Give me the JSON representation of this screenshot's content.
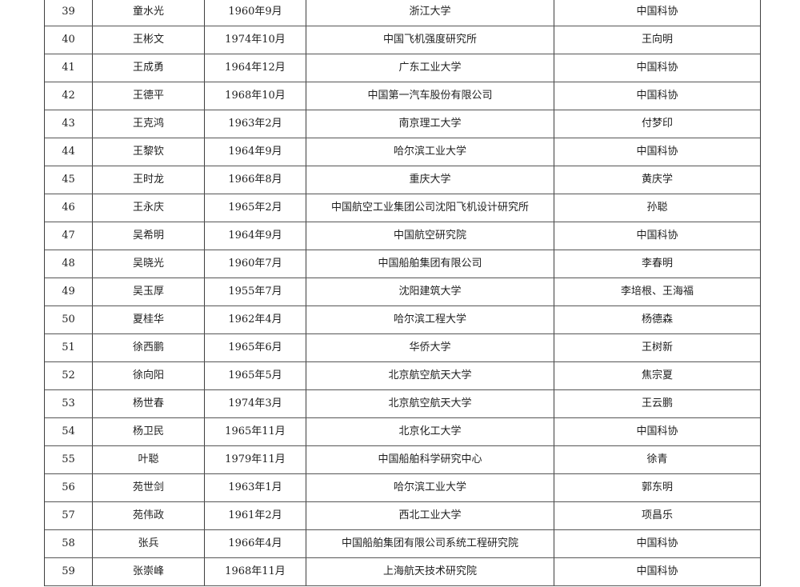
{
  "colors": {
    "background": "#ffffff",
    "border_vertical": "#3f3f3f",
    "border_horizontal": "#555555",
    "text": "#1f1f1f"
  },
  "table": {
    "columns": [
      "number",
      "name",
      "birth_date",
      "organization",
      "nominator"
    ],
    "rows": [
      {
        "no": "39",
        "name": "童水光",
        "birth": "1960年9月",
        "org": "浙江大学",
        "nominator": "中国科协"
      },
      {
        "no": "40",
        "name": "王彬文",
        "birth": "1974年10月",
        "org": "中国飞机强度研究所",
        "nominator": "王向明"
      },
      {
        "no": "41",
        "name": "王成勇",
        "birth": "1964年12月",
        "org": "广东工业大学",
        "nominator": "中国科协"
      },
      {
        "no": "42",
        "name": "王德平",
        "birth": "1968年10月",
        "org": "中国第一汽车股份有限公司",
        "nominator": "中国科协"
      },
      {
        "no": "43",
        "name": "王克鸿",
        "birth": "1963年2月",
        "org": "南京理工大学",
        "nominator": "付梦印"
      },
      {
        "no": "44",
        "name": "王黎钦",
        "birth": "1964年9月",
        "org": "哈尔滨工业大学",
        "nominator": "中国科协"
      },
      {
        "no": "45",
        "name": "王时龙",
        "birth": "1966年8月",
        "org": "重庆大学",
        "nominator": "黄庆学"
      },
      {
        "no": "46",
        "name": "王永庆",
        "birth": "1965年2月",
        "org": "中国航空工业集团公司沈阳飞机设计研究所",
        "nominator": "孙聪"
      },
      {
        "no": "47",
        "name": "吴希明",
        "birth": "1964年9月",
        "org": "中国航空研究院",
        "nominator": "中国科协"
      },
      {
        "no": "48",
        "name": "吴晓光",
        "birth": "1960年7月",
        "org": "中国船舶集团有限公司",
        "nominator": "李春明"
      },
      {
        "no": "49",
        "name": "吴玉厚",
        "birth": "1955年7月",
        "org": "沈阳建筑大学",
        "nominator": "李培根、王海福"
      },
      {
        "no": "50",
        "name": "夏桂华",
        "birth": "1962年4月",
        "org": "哈尔滨工程大学",
        "nominator": "杨德森"
      },
      {
        "no": "51",
        "name": "徐西鹏",
        "birth": "1965年6月",
        "org": "华侨大学",
        "nominator": "王树新"
      },
      {
        "no": "52",
        "name": "徐向阳",
        "birth": "1965年5月",
        "org": "北京航空航天大学",
        "nominator": "焦宗夏"
      },
      {
        "no": "53",
        "name": "杨世春",
        "birth": "1974年3月",
        "org": "北京航空航天大学",
        "nominator": "王云鹏"
      },
      {
        "no": "54",
        "name": "杨卫民",
        "birth": "1965年11月",
        "org": "北京化工大学",
        "nominator": "中国科协"
      },
      {
        "no": "55",
        "name": "叶聪",
        "birth": "1979年11月",
        "org": "中国船舶科学研究中心",
        "nominator": "徐青"
      },
      {
        "no": "56",
        "name": "苑世剑",
        "birth": "1963年1月",
        "org": "哈尔滨工业大学",
        "nominator": "郭东明"
      },
      {
        "no": "57",
        "name": "苑伟政",
        "birth": "1961年2月",
        "org": "西北工业大学",
        "nominator": "项昌乐"
      },
      {
        "no": "58",
        "name": "张兵",
        "birth": "1966年4月",
        "org": "中国船舶集团有限公司系统工程研究院",
        "nominator": "中国科协"
      },
      {
        "no": "59",
        "name": "张崇峰",
        "birth": "1968年11月",
        "org": "上海航天技术研究院",
        "nominator": "中国科协"
      }
    ]
  }
}
